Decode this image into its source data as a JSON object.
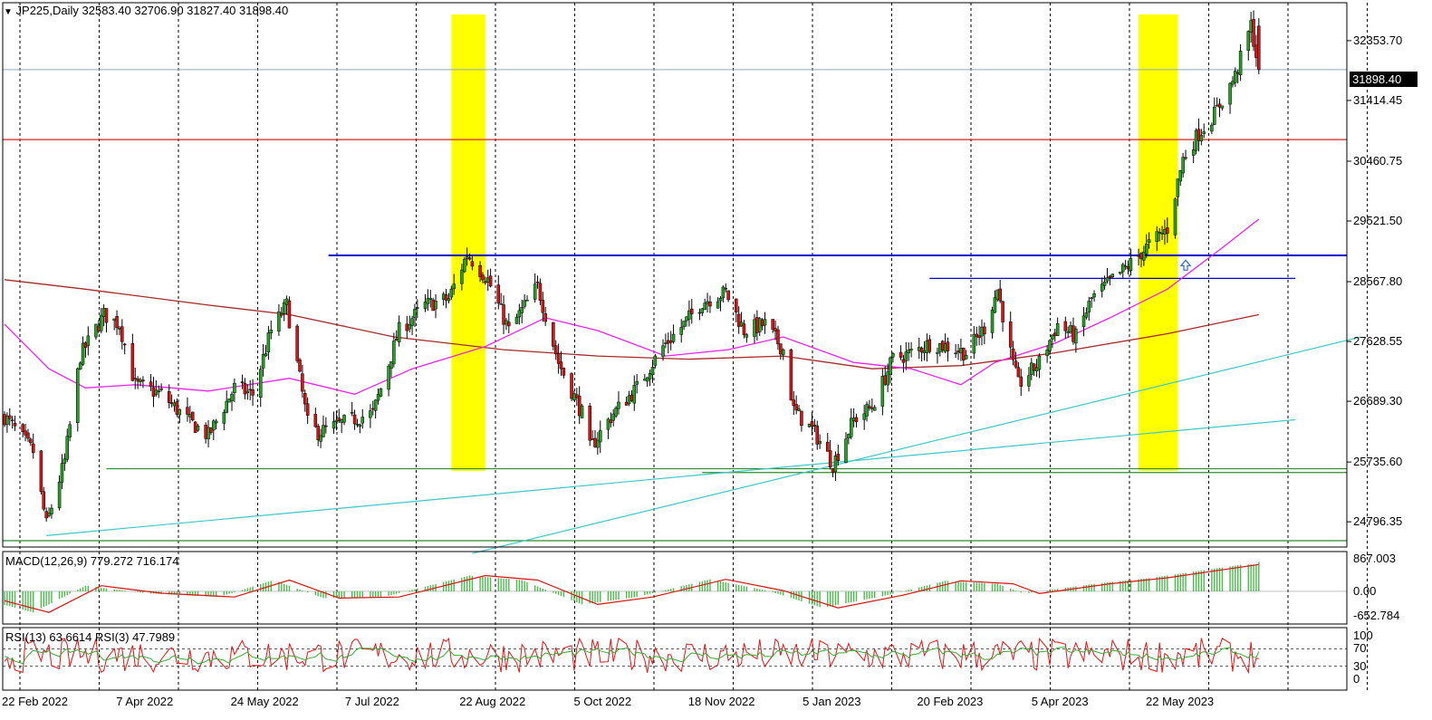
{
  "header": {
    "symbol_text": "JP225,Daily  32583.40 32706.90 31827.40 31898.40",
    "macd_text": "MACD(12,26,9) 779.272 716.174",
    "rsi_text": "RSI(13) 63.6614  RSI(3) 47.7989"
  },
  "price_axis": {
    "labels": [
      "32353.70",
      "31414.45",
      "30460.75",
      "29521.50",
      "28567.80",
      "27628.55",
      "26689.30",
      "25735.60",
      "24796.35"
    ],
    "current": "31898.40"
  },
  "macd_axis": {
    "labels": [
      "867.003",
      "0.00",
      "-652.784"
    ]
  },
  "rsi_axis": {
    "labels": [
      "100",
      "70",
      "30",
      "0"
    ]
  },
  "time_axis": {
    "labels": [
      "22 Feb 2022",
      "7 Apr 2022",
      "24 May 2022",
      "7 Jul 2022",
      "22 Aug 2022",
      "5 Oct 2022",
      "18 Nov 2022",
      "5 Jan 2023",
      "20 Feb 2023",
      "5 Apr 2023",
      "22 May 2023"
    ]
  },
  "colors": {
    "bull": "#22a322",
    "bear": "#dd1111",
    "sma_slow": "#a52a2a",
    "sma_fast": "#ee22ee",
    "hline_blue": "#0000cc",
    "hline_red": "#dd2222",
    "hline_green": "#2e8b2e",
    "trendline": "#3cc8c8",
    "highlight": "#ffff00",
    "macd_hist": "#4cbb4c",
    "macd_signal": "#dd1111",
    "rsi_fast": "#ee1111",
    "rsi_slow": "#33aa33"
  },
  "chart_data": {
    "type": "candlestick",
    "instrument": "JP225",
    "timeframe": "Daily",
    "last_bar": {
      "open": 32583.4,
      "high": 32706.9,
      "low": 31827.4,
      "close": 31898.4
    },
    "ylim": [
      24400,
      32950
    ],
    "close_path": [
      [
        "2022-02-21",
        26450
      ],
      [
        "2022-03-04",
        25900
      ],
      [
        "2022-03-09",
        24750
      ],
      [
        "2022-03-16",
        25750
      ],
      [
        "2022-03-22",
        27400
      ],
      [
        "2022-03-31",
        28050
      ],
      [
        "2022-04-06",
        27900
      ],
      [
        "2022-04-12",
        26950
      ],
      [
        "2022-04-22",
        26800
      ],
      [
        "2022-05-02",
        26400
      ],
      [
        "2022-05-10",
        26150
      ],
      [
        "2022-05-20",
        26900
      ],
      [
        "2022-05-27",
        26800
      ],
      [
        "2022-06-03",
        27800
      ],
      [
        "2022-06-09",
        28200
      ],
      [
        "2022-06-17",
        26350
      ],
      [
        "2022-06-21",
        26200
      ],
      [
        "2022-07-04",
        26400
      ],
      [
        "2022-07-12",
        26500
      ],
      [
        "2022-07-22",
        27800
      ],
      [
        "2022-08-01",
        28200
      ],
      [
        "2022-08-10",
        28300
      ],
      [
        "2022-08-17",
        29000
      ],
      [
        "2022-08-25",
        28600
      ],
      [
        "2022-09-02",
        27800
      ],
      [
        "2022-09-13",
        28500
      ],
      [
        "2022-09-21",
        27300
      ],
      [
        "2022-09-30",
        26500
      ],
      [
        "2022-10-03",
        25950
      ],
      [
        "2022-10-12",
        26500
      ],
      [
        "2022-10-21",
        26900
      ],
      [
        "2022-10-31",
        27550
      ],
      [
        "2022-11-08",
        27900
      ],
      [
        "2022-11-15",
        28250
      ],
      [
        "2022-11-24",
        28400
      ],
      [
        "2022-12-01",
        27800
      ],
      [
        "2022-12-09",
        27900
      ],
      [
        "2022-12-16",
        27500
      ],
      [
        "2022-12-20",
        26550
      ],
      [
        "2022-12-28",
        26200
      ],
      [
        "2023-01-04",
        25700
      ],
      [
        "2023-01-12",
        26400
      ],
      [
        "2023-01-19",
        26600
      ],
      [
        "2023-01-27",
        27350
      ],
      [
        "2023-02-03",
        27450
      ],
      [
        "2023-02-10",
        27600
      ],
      [
        "2023-02-17",
        27550
      ],
      [
        "2023-02-24",
        27450
      ],
      [
        "2023-03-03",
        27850
      ],
      [
        "2023-03-08",
        28450
      ],
      [
        "2023-03-14",
        27250
      ],
      [
        "2023-03-16",
        26950
      ],
      [
        "2023-03-24",
        27300
      ],
      [
        "2023-03-31",
        27900
      ],
      [
        "2023-04-07",
        27700
      ],
      [
        "2023-04-13",
        28300
      ],
      [
        "2023-04-21",
        28600
      ],
      [
        "2023-04-28",
        28850
      ],
      [
        "2023-05-05",
        29150
      ],
      [
        "2023-05-12",
        29400
      ],
      [
        "2023-05-18",
        30500
      ],
      [
        "2023-05-24",
        30900
      ],
      [
        "2023-05-30",
        31200
      ],
      [
        "2023-06-07",
        31800
      ],
      [
        "2023-06-13",
        32600
      ],
      [
        "2023-06-16",
        31898.4
      ]
    ],
    "horizontal_levels": [
      {
        "price": 31898.4,
        "style": "current"
      },
      {
        "price": 30800,
        "color": "red"
      },
      {
        "price": 28980,
        "color": "blue"
      },
      {
        "price": 28620,
        "color": "blue",
        "from": "2023-02-10",
        "to": "2023-06-30"
      },
      {
        "price": 25630,
        "color": "green"
      },
      {
        "price": 25570,
        "color": "green"
      },
      {
        "price": 24500,
        "color": "green"
      }
    ],
    "highlighted_ranges": [
      {
        "from": "2022-08-11",
        "to": "2022-08-24"
      },
      {
        "from": "2023-05-01",
        "to": "2023-05-16"
      }
    ],
    "moving_average_fast": [
      [
        "2022-02-21",
        27900
      ],
      [
        "2022-03-10",
        27200
      ],
      [
        "2022-03-24",
        26900
      ],
      [
        "2022-04-12",
        26950
      ],
      [
        "2022-05-10",
        26850
      ],
      [
        "2022-06-10",
        27050
      ],
      [
        "2022-07-05",
        26800
      ],
      [
        "2022-07-27",
        27200
      ],
      [
        "2022-08-24",
        27550
      ],
      [
        "2022-09-16",
        28000
      ],
      [
        "2022-10-06",
        27800
      ],
      [
        "2022-11-01",
        27400
      ],
      [
        "2022-11-25",
        27500
      ],
      [
        "2022-12-16",
        27700
      ],
      [
        "2023-01-12",
        27300
      ],
      [
        "2023-02-03",
        27200
      ],
      [
        "2023-02-22",
        26950
      ],
      [
        "2023-03-07",
        27300
      ],
      [
        "2023-03-30",
        27600
      ],
      [
        "2023-04-20",
        28000
      ],
      [
        "2023-05-12",
        28450
      ],
      [
        "2023-06-02",
        29100
      ],
      [
        "2023-06-16",
        29550
      ]
    ],
    "moving_average_slow": [
      [
        "2022-02-21",
        28600
      ],
      [
        "2022-03-24",
        28450
      ],
      [
        "2022-05-10",
        28200
      ],
      [
        "2022-06-10",
        28050
      ],
      [
        "2022-07-20",
        27700
      ],
      [
        "2022-08-31",
        27500
      ],
      [
        "2022-10-06",
        27400
      ],
      [
        "2022-11-10",
        27350
      ],
      [
        "2022-12-16",
        27400
      ],
      [
        "2023-01-19",
        27200
      ],
      [
        "2023-02-22",
        27250
      ],
      [
        "2023-03-30",
        27450
      ],
      [
        "2023-05-12",
        27750
      ],
      [
        "2023-06-16",
        28050
      ]
    ],
    "trendlines": [
      {
        "from": [
          "2022-03-09",
          24580
        ],
        "to": [
          "2023-06-30",
          26400
        ]
      },
      {
        "from": [
          "2022-08-19",
          24300
        ],
        "to": [
          "2023-07-25",
          27700
        ]
      }
    ],
    "macd": {
      "params": [
        12,
        26,
        9
      ],
      "main": 779.272,
      "signal": 716.174,
      "ylim": [
        -652.784,
        867.003
      ],
      "signal_path": [
        [
          "2022-02-21",
          -250
        ],
        [
          "2022-03-10",
          -560
        ],
        [
          "2022-03-30",
          150
        ],
        [
          "2022-04-22",
          -50
        ],
        [
          "2022-05-20",
          -150
        ],
        [
          "2022-06-10",
          300
        ],
        [
          "2022-06-29",
          -180
        ],
        [
          "2022-07-22",
          -150
        ],
        [
          "2022-08-24",
          420
        ],
        [
          "2022-09-13",
          300
        ],
        [
          "2022-10-06",
          -350
        ],
        [
          "2022-10-27",
          -150
        ],
        [
          "2022-11-24",
          320
        ],
        [
          "2022-12-16",
          20
        ],
        [
          "2023-01-06",
          -440
        ],
        [
          "2023-01-31",
          -100
        ],
        [
          "2023-02-22",
          280
        ],
        [
          "2023-03-14",
          200
        ],
        [
          "2023-03-24",
          -60
        ],
        [
          "2023-04-20",
          200
        ],
        [
          "2023-05-12",
          360
        ],
        [
          "2023-06-16",
          716.174
        ]
      ]
    },
    "rsi": {
      "periods": [
        13,
        3
      ],
      "values": [
        63.6614,
        47.7989
      ],
      "levels": [
        70,
        30
      ],
      "ylim": [
        0,
        100
      ]
    }
  }
}
